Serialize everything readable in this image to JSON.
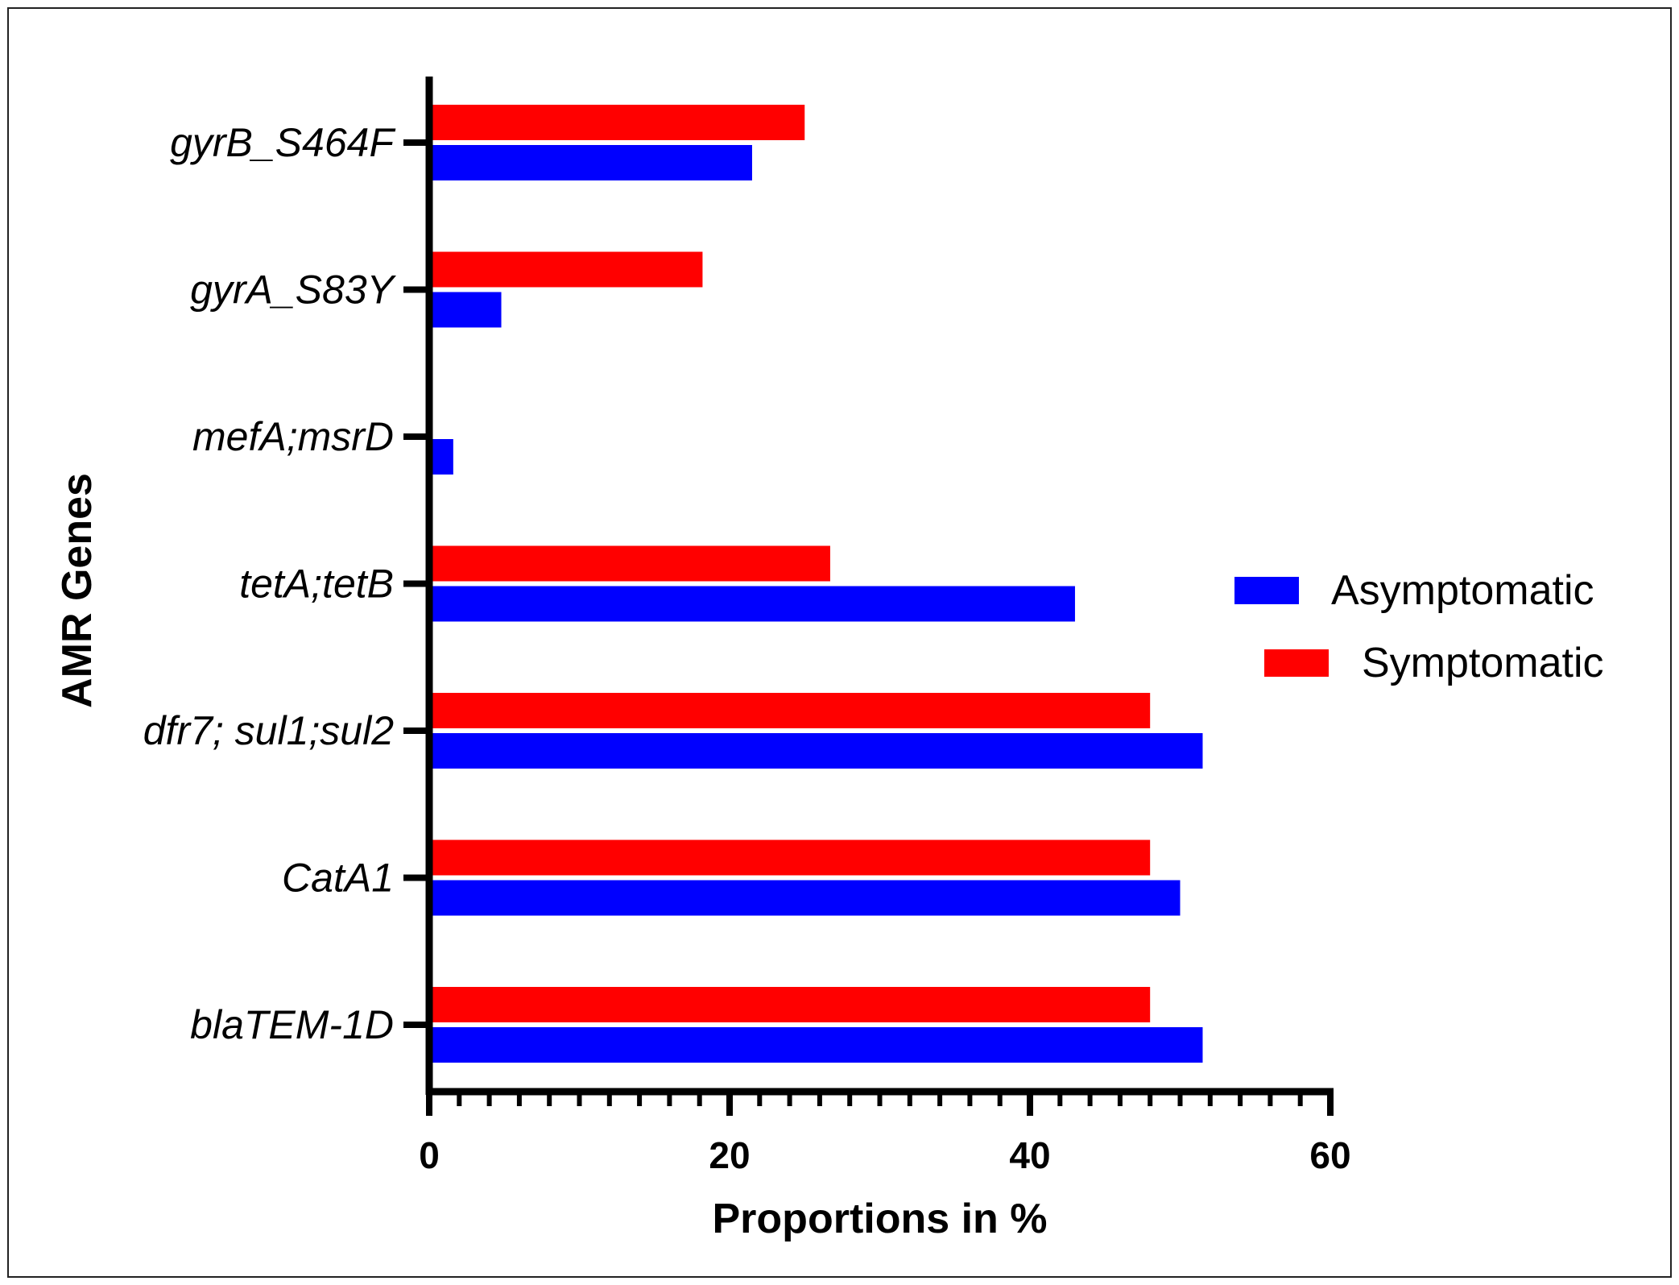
{
  "chart_data": {
    "type": "bar",
    "orientation": "horizontal",
    "categories": [
      "gyrB_S464F",
      "gyrA_S83Y",
      "mefA;msrD",
      "tetA;tetB",
      "dfr7; sul1;sul2",
      "CatA1",
      "blaTEM-1D"
    ],
    "series": [
      {
        "name": "Symptomatic",
        "color": "#ff0000",
        "values": [
          25.0,
          18.2,
          0,
          26.7,
          48.0,
          48.0,
          48.0
        ]
      },
      {
        "name": "Asymptomatic",
        "color": "#0000ff",
        "values": [
          21.5,
          4.8,
          1.6,
          43.0,
          51.5,
          50.0,
          51.5
        ]
      }
    ],
    "xlabel": "Proportions in %",
    "ylabel": "AMR Genes",
    "xlim": [
      0,
      60
    ],
    "x_ticks": [
      "0",
      "20",
      "40",
      "60"
    ],
    "legend": {
      "position": "right",
      "entries": [
        {
          "label": "Asymptomatic",
          "color": "#0000ff"
        },
        {
          "label": "Symptomatic",
          "color": "#ff0000"
        }
      ]
    },
    "grid": false
  }
}
